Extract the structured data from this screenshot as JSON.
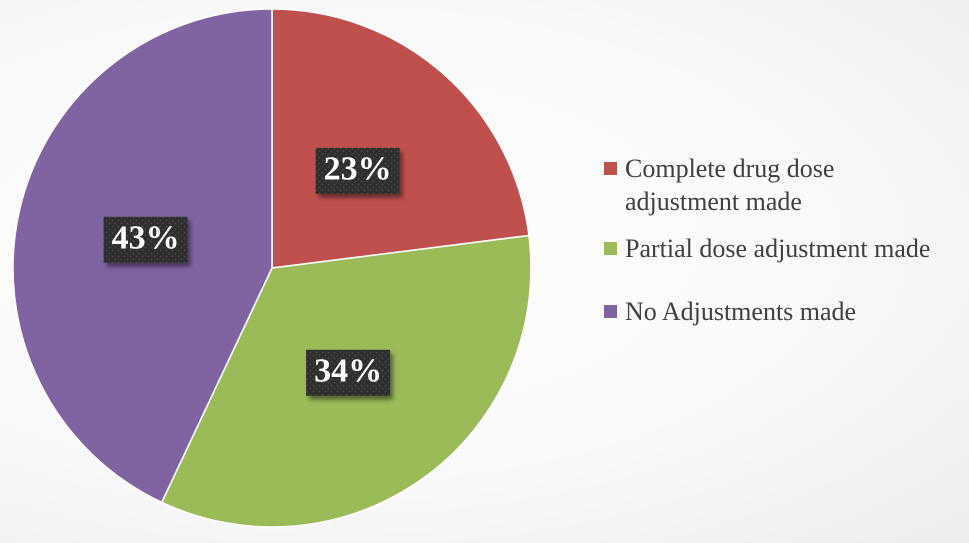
{
  "chart_data": {
    "type": "pie",
    "title": "",
    "start_angle_deg": 0,
    "direction": "clockwise",
    "legend_position": "right",
    "slices": [
      {
        "label": "Complete drug dose\nadjustment made",
        "value": 23,
        "display": "23%",
        "color": "#C0504D"
      },
      {
        "label": "Partial dose adjustment made",
        "value": 34,
        "display": "34%",
        "color": "#9BBB59"
      },
      {
        "label": "No Adjustments made",
        "value": 43,
        "display": "43%",
        "color": "#8064A2"
      }
    ]
  }
}
